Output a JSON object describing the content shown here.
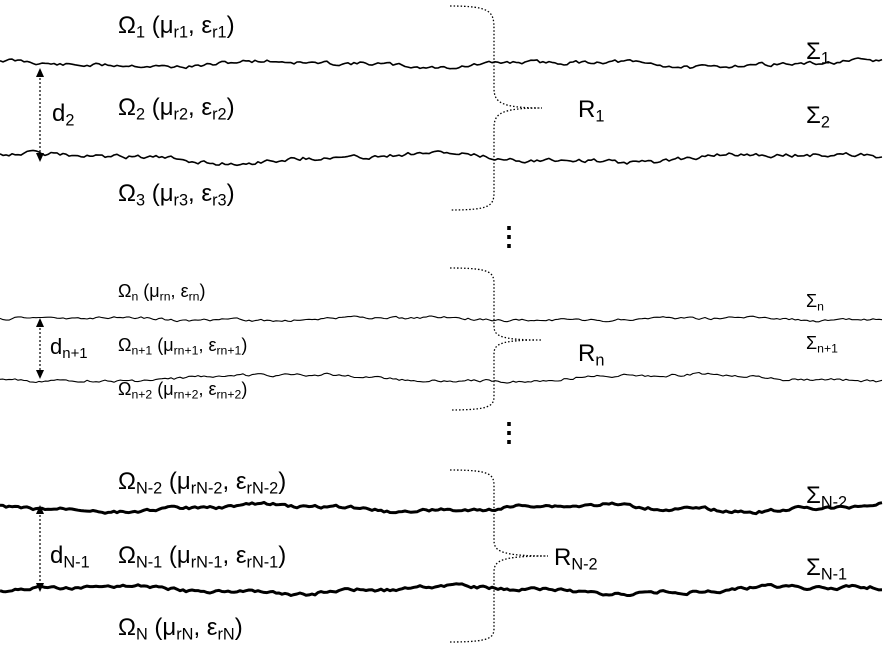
{
  "regions": [
    {
      "omega": "Ω",
      "sub": "1",
      "mu": "μ",
      "mu_sub": "r1",
      "eps": "ε",
      "eps_sub": "r1"
    },
    {
      "omega": "Ω",
      "sub": "2",
      "mu": "μ",
      "mu_sub": "r2",
      "eps": "ε",
      "eps_sub": "r2"
    },
    {
      "omega": "Ω",
      "sub": "3",
      "mu": "μ",
      "mu_sub": "r3",
      "eps": "ε",
      "eps_sub": "r3"
    },
    {
      "omega": "Ω",
      "sub": "n",
      "mu": "μ",
      "mu_sub": "rn",
      "eps": "ε",
      "eps_sub": "rn"
    },
    {
      "omega": "Ω",
      "sub": "n+1",
      "mu": "μ",
      "mu_sub": "rn+1",
      "eps": "ε",
      "eps_sub": "rn+1"
    },
    {
      "omega": "Ω",
      "sub": "n+2",
      "mu": "μ",
      "mu_sub": "rn+2",
      "eps": "ε",
      "eps_sub": "rn+2"
    },
    {
      "omega": "Ω",
      "sub": "N-2",
      "mu": "μ",
      "mu_sub": "rN-2",
      "eps": "ε",
      "eps_sub": "rN-2"
    },
    {
      "omega": "Ω",
      "sub": "N-1",
      "mu": "μ",
      "mu_sub": "rN-1",
      "eps": "ε",
      "eps_sub": "rN-1"
    },
    {
      "omega": "Ω",
      "sub": "N",
      "mu": "μ",
      "mu_sub": "rN",
      "eps": "ε",
      "eps_sub": "rN"
    }
  ],
  "interfaces": [
    {
      "sym": "Σ",
      "sub": "1"
    },
    {
      "sym": "Σ",
      "sub": "2"
    },
    {
      "sym": "Σ",
      "sub": "n"
    },
    {
      "sym": "Σ",
      "sub": "n+1"
    },
    {
      "sym": "Σ",
      "sub": "N-2"
    },
    {
      "sym": "Σ",
      "sub": "N-1"
    }
  ],
  "thicknesses": [
    {
      "sym": "d",
      "sub": "2"
    },
    {
      "sym": "d",
      "sub": "n+1"
    },
    {
      "sym": "d",
      "sub": "N-1"
    }
  ],
  "reflections": [
    {
      "sym": "R",
      "sub": "1"
    },
    {
      "sym": "R",
      "sub": "n"
    },
    {
      "sym": "R",
      "sub": "N-2"
    }
  ],
  "ellipsis": "⋮"
}
